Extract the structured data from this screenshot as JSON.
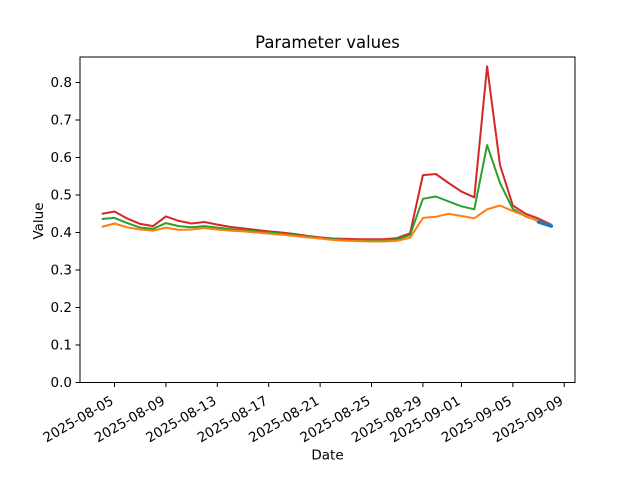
{
  "figure": {
    "background_color": "#ffffff",
    "frame_color": "#000000"
  },
  "chart_data": {
    "type": "line",
    "title": "Parameter values",
    "xlabel": "Date",
    "ylabel": "Value",
    "grid": false,
    "legend_visible": false,
    "ylim": [
      0.0,
      0.868
    ],
    "yticks": [
      0.0,
      0.1,
      0.2,
      0.3,
      0.4,
      0.5,
      0.6,
      0.7,
      0.8
    ],
    "xticks": [
      "2025-08-05",
      "2025-08-09",
      "2025-08-13",
      "2025-08-17",
      "2025-08-21",
      "2025-08-25",
      "2025-08-29",
      "2025-09-01",
      "2025-09-05",
      "2025-09-09"
    ],
    "x": [
      "2025-08-04",
      "2025-08-05",
      "2025-08-06",
      "2025-08-07",
      "2025-08-08",
      "2025-08-09",
      "2025-08-10",
      "2025-08-11",
      "2025-08-12",
      "2025-08-13",
      "2025-08-14",
      "2025-08-15",
      "2025-08-16",
      "2025-08-17",
      "2025-08-18",
      "2025-08-19",
      "2025-08-20",
      "2025-08-21",
      "2025-08-22",
      "2025-08-23",
      "2025-08-24",
      "2025-08-25",
      "2025-08-26",
      "2025-08-27",
      "2025-08-28",
      "2025-08-29",
      "2025-08-30",
      "2025-08-31",
      "2025-09-01",
      "2025-09-02",
      "2025-09-03",
      "2025-09-04",
      "2025-09-05",
      "2025-09-06",
      "2025-09-07",
      "2025-09-08"
    ],
    "series": [
      {
        "name": "red",
        "color": "#d62728",
        "linewidth": 2,
        "values": [
          0.45,
          0.456,
          0.437,
          0.423,
          0.417,
          0.443,
          0.431,
          0.424,
          0.428,
          0.421,
          0.415,
          0.411,
          0.407,
          0.403,
          0.4,
          0.396,
          0.391,
          0.387,
          0.384,
          0.383,
          0.382,
          0.382,
          0.382,
          0.385,
          0.398,
          0.553,
          0.556,
          0.532,
          0.509,
          0.494,
          0.843,
          0.58,
          0.472,
          0.45,
          0.437,
          0.421
        ]
      },
      {
        "name": "green",
        "color": "#2ca02c",
        "linewidth": 2,
        "values": [
          0.436,
          0.439,
          0.425,
          0.413,
          0.41,
          0.425,
          0.417,
          0.414,
          0.417,
          0.413,
          0.409,
          0.406,
          0.403,
          0.4,
          0.397,
          0.393,
          0.389,
          0.385,
          0.382,
          0.38,
          0.379,
          0.379,
          0.379,
          0.382,
          0.393,
          0.49,
          0.496,
          0.483,
          0.47,
          0.462,
          0.633,
          0.532,
          0.463,
          0.443,
          0.431,
          0.42
        ]
      },
      {
        "name": "orange",
        "color": "#ff7f0e",
        "linewidth": 2,
        "values": [
          0.415,
          0.424,
          0.414,
          0.408,
          0.405,
          0.413,
          0.407,
          0.408,
          0.412,
          0.408,
          0.405,
          0.403,
          0.4,
          0.397,
          0.394,
          0.391,
          0.387,
          0.384,
          0.38,
          0.378,
          0.377,
          0.376,
          0.376,
          0.378,
          0.386,
          0.439,
          0.442,
          0.45,
          0.444,
          0.438,
          0.462,
          0.472,
          0.457,
          0.444,
          0.43,
          0.42
        ]
      },
      {
        "name": "blue",
        "color": "#1f77b4",
        "linewidth": 3.5,
        "x": [
          "2025-09-07",
          "2025-09-08"
        ],
        "values": [
          0.428,
          0.417
        ]
      }
    ]
  }
}
